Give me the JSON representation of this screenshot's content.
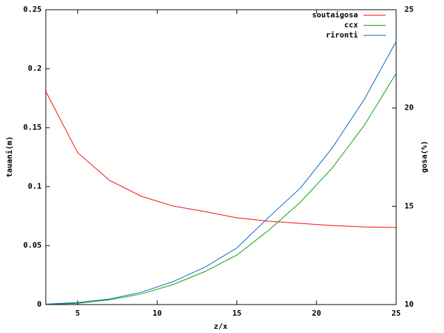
{
  "chart_data": {
    "type": "line",
    "xlabel": "z/x",
    "ylabel": "tauani(m)",
    "y2label": "gosa(%)",
    "x": [
      3,
      5,
      7,
      9,
      11,
      13,
      15,
      17,
      19,
      21,
      23,
      25
    ],
    "series": [
      {
        "name": "soutaigosa",
        "color": "#ff0000",
        "axis": "y2",
        "values": [
          20.84,
          17.73,
          16.32,
          15.51,
          15.01,
          14.73,
          14.41,
          14.24,
          14.13,
          14.02,
          13.95,
          13.92
        ]
      },
      {
        "name": "ccx",
        "color": "#00a000",
        "values": [
          0.0003,
          0.001,
          0.004,
          0.009,
          0.017,
          0.028,
          0.042,
          0.063,
          0.087,
          0.116,
          0.152,
          0.196
        ]
      },
      {
        "name": "rironti",
        "color": "#0060c0",
        "values": [
          0.0004,
          0.0017,
          0.0047,
          0.0104,
          0.0195,
          0.0317,
          0.048,
          0.074,
          0.099,
          0.133,
          0.174,
          0.223
        ]
      }
    ],
    "xlim": [
      3,
      25
    ],
    "xticks": [
      5,
      10,
      15,
      20,
      25
    ],
    "ylim": [
      0,
      0.25
    ],
    "yticks": [
      0,
      0.05,
      0.1,
      0.15,
      0.2,
      0.25
    ],
    "y2lim": [
      10,
      25
    ],
    "y2ticks": [
      10,
      15,
      20,
      25
    ],
    "legend": "upper right",
    "grid": false
  }
}
